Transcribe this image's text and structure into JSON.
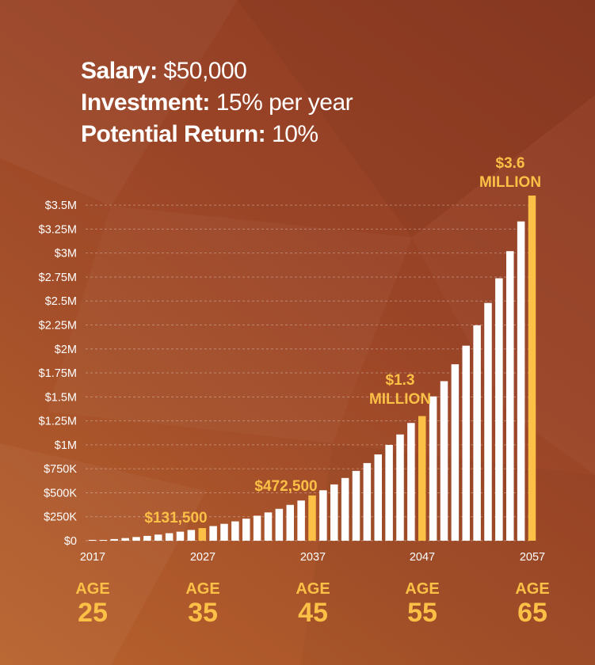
{
  "info": {
    "salary_label": "Salary:",
    "salary_value": "$50,000",
    "investment_label": "Investment:",
    "investment_value": "15% per year",
    "return_label": "Potential Return:",
    "return_value": "10%"
  },
  "chart_data": {
    "type": "bar",
    "x": [
      2017,
      2018,
      2019,
      2020,
      2021,
      2022,
      2023,
      2024,
      2025,
      2026,
      2027,
      2028,
      2029,
      2030,
      2031,
      2032,
      2033,
      2034,
      2035,
      2036,
      2037,
      2038,
      2039,
      2040,
      2041,
      2042,
      2043,
      2044,
      2045,
      2046,
      2047,
      2048,
      2049,
      2050,
      2051,
      2052,
      2053,
      2054,
      2055,
      2056,
      2057
    ],
    "values": [
      0,
      8250,
      17325,
      27308,
      38288,
      50367,
      63654,
      78269,
      94346,
      112031,
      131500,
      152650,
      176000,
      201600,
      229800,
      260800,
      294900,
      332400,
      373600,
      418900,
      472500,
      526000,
      587000,
      654000,
      728000,
      810000,
      900000,
      999000,
      1108000,
      1228000,
      1300000,
      1505000,
      1664000,
      1840000,
      2034000,
      2247000,
      2480000,
      2737000,
      3020000,
      3330000,
      3600000
    ],
    "highlighted_years": [
      2027,
      2037,
      2047,
      2057
    ],
    "highlight_color": "#fcc046",
    "bar_color": "#ffffff",
    "ylim": [
      0,
      3600000
    ],
    "yticks": [
      0,
      250000,
      500000,
      750000,
      1000000,
      1250000,
      1500000,
      1750000,
      2000000,
      2250000,
      2500000,
      2750000,
      3000000,
      3250000,
      3500000
    ],
    "ytick_labels": [
      "$0",
      "$250K",
      "$500K",
      "$750K",
      "$1M",
      "$1.25M",
      "$1.5M",
      "$1.75M",
      "$2M",
      "$2.25M",
      "$2.5M",
      "$2.75M",
      "$3M",
      "$3.25M",
      "$3.5M"
    ],
    "xtick_labels": [
      "2017",
      "2027",
      "2037",
      "2047",
      "2057"
    ],
    "grid": "dashed horizontal",
    "annotations": [
      {
        "year": 2027,
        "lines": [
          "$131,500"
        ]
      },
      {
        "year": 2037,
        "lines": [
          "$472,500"
        ]
      },
      {
        "year": 2047,
        "lines": [
          "$1.3",
          "MILLION"
        ]
      },
      {
        "year": 2057,
        "lines": [
          "$3.6",
          "MILLION"
        ]
      }
    ],
    "ages": [
      {
        "year": 2017,
        "label": "AGE",
        "value": "25"
      },
      {
        "year": 2027,
        "label": "AGE",
        "value": "35"
      },
      {
        "year": 2037,
        "label": "AGE",
        "value": "45"
      },
      {
        "year": 2047,
        "label": "AGE",
        "value": "55"
      },
      {
        "year": 2057,
        "label": "AGE",
        "value": "65"
      }
    ]
  }
}
